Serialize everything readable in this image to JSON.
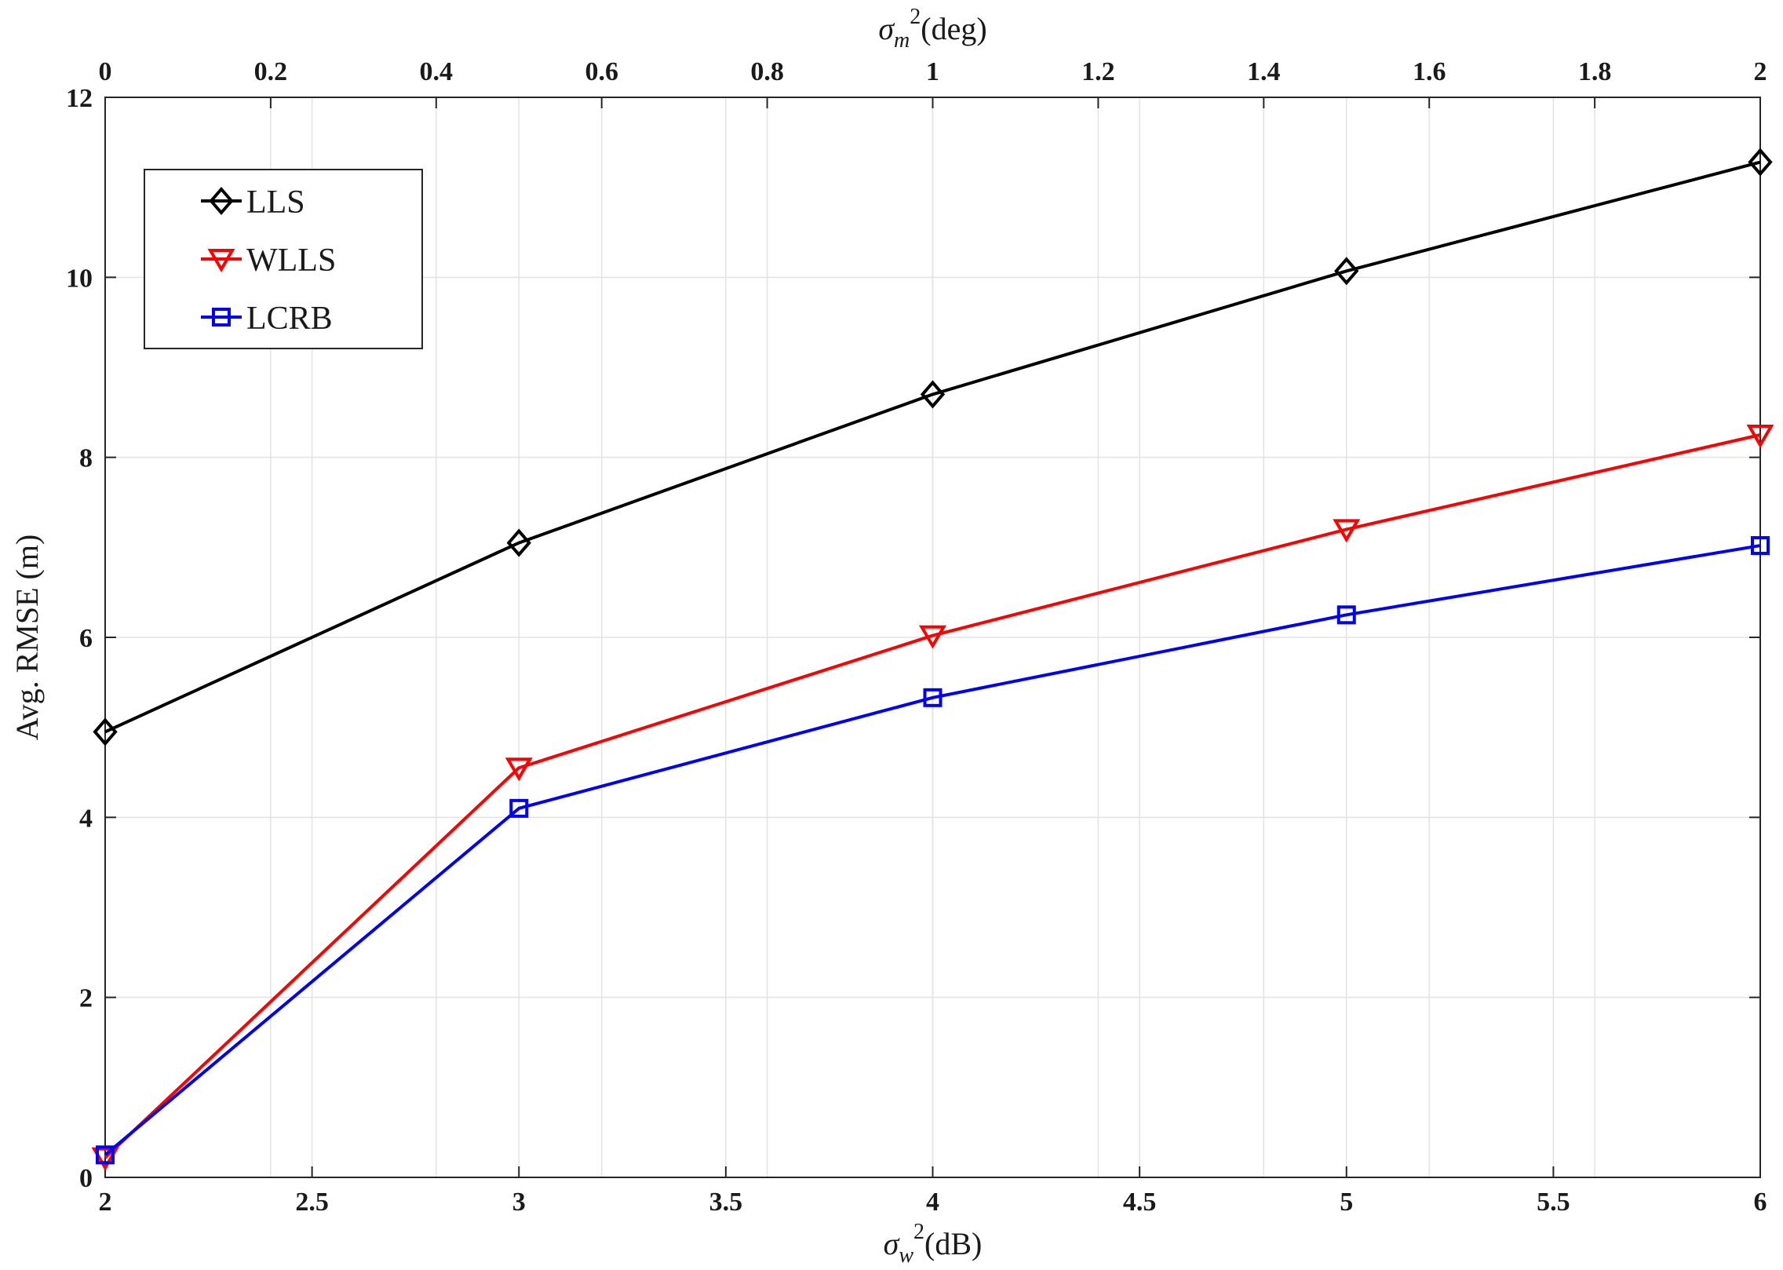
{
  "chart_data": {
    "type": "line",
    "xlabel": "σ²_w(dB)",
    "xlabel_base": "σ",
    "xlabel_sup": "2",
    "xlabel_sub": "w",
    "xlabel_unit": "(dB)",
    "x2label": "σ²_m(deg)",
    "x2label_base": "σ",
    "x2label_sup": "2",
    "x2label_sub": "m",
    "x2label_unit": "(deg)",
    "ylabel": "Avg. RMSE (m)",
    "xlim": [
      2,
      6
    ],
    "x2lim": [
      0,
      2
    ],
    "ylim": [
      0,
      12
    ],
    "x_ticks": [
      2,
      2.5,
      3,
      3.5,
      4,
      4.5,
      5,
      5.5,
      6
    ],
    "x_tick_labels": [
      "2",
      "2.5",
      "3",
      "3.5",
      "4",
      "4.5",
      "5",
      "5.5",
      "6"
    ],
    "x2_ticks": [
      0,
      0.2,
      0.4,
      0.6,
      0.8,
      1,
      1.2,
      1.4,
      1.6,
      1.8,
      2
    ],
    "x2_tick_labels": [
      "0",
      "0.2",
      "0.4",
      "0.6",
      "0.8",
      "1",
      "1.2",
      "1.4",
      "1.6",
      "1.8",
      "2"
    ],
    "y_ticks": [
      0,
      2,
      4,
      6,
      8,
      10,
      12
    ],
    "y_tick_labels": [
      "0",
      "2",
      "4",
      "6",
      "8",
      "10",
      "12"
    ],
    "grid": true,
    "legend_position": "top-left",
    "x": [
      2,
      3,
      4,
      5,
      6
    ],
    "series": [
      {
        "name": "LLS",
        "values": [
          4.95,
          7.05,
          8.7,
          10.07,
          11.28
        ],
        "color": "#000000",
        "marker": "diamond"
      },
      {
        "name": "WLLS",
        "values": [
          0.22,
          4.55,
          6.02,
          7.2,
          8.25
        ],
        "color": "#ff0000",
        "marker": "triangle-down"
      },
      {
        "name": "LCRB",
        "values": [
          0.25,
          4.1,
          5.33,
          6.25,
          7.02
        ],
        "color": "#0000ff",
        "marker": "square"
      }
    ]
  }
}
